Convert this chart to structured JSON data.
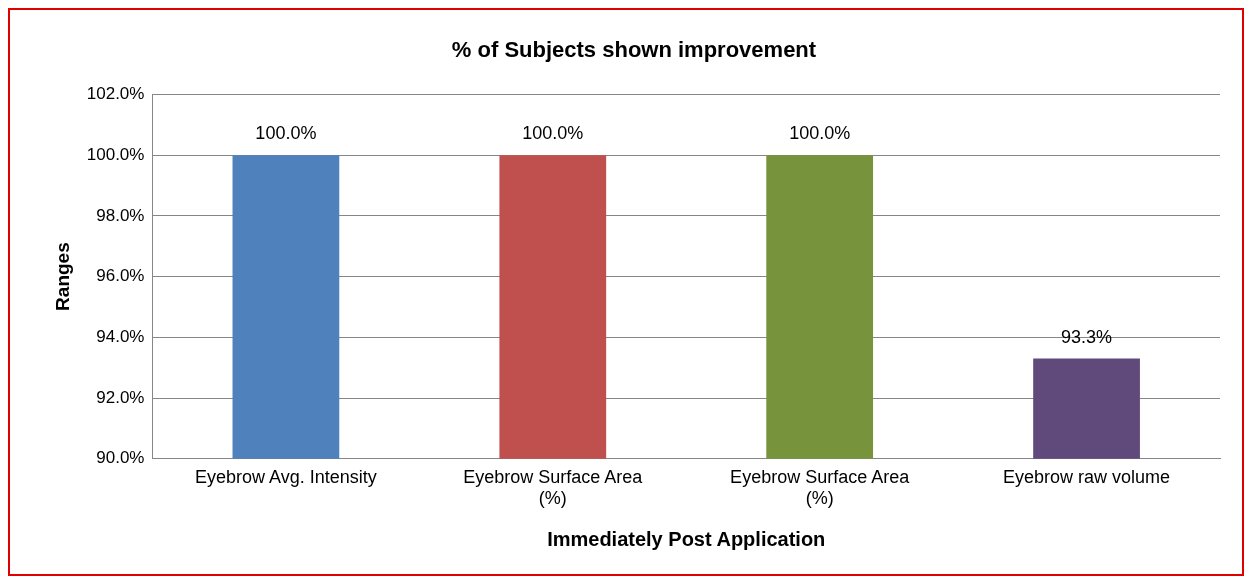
{
  "chart_data": {
    "type": "bar",
    "title": "% of Subjects shown improvement",
    "xlabel": "Immediately Post Application",
    "ylabel": "Ranges",
    "categories": [
      "Eyebrow Avg. Intensity",
      "Eyebrow Surface Area (%)",
      "Eyebrow Surface Area (%)",
      "Eyebrow raw volume"
    ],
    "values": [
      100,
      100,
      100,
      93.3
    ],
    "colors": [
      "#4f81bd",
      "#c0504d",
      "#77933c",
      "#604a7b"
    ],
    "value_labels": [
      "100.0%",
      "100.0%",
      "100.0%",
      "93.3%"
    ],
    "ylim": [
      90,
      102
    ],
    "yticks": [
      {
        "value": 90,
        "label": "90.0%"
      },
      {
        "value": 92,
        "label": "92.0%"
      },
      {
        "value": 94,
        "label": "94.0%"
      },
      {
        "value": 96,
        "label": "96.0%"
      },
      {
        "value": 98,
        "label": "98.0%"
      },
      {
        "value": 100,
        "label": "100.0%"
      },
      {
        "value": 102,
        "label": "102.0%"
      }
    ],
    "grid": "y",
    "legend": false
  }
}
